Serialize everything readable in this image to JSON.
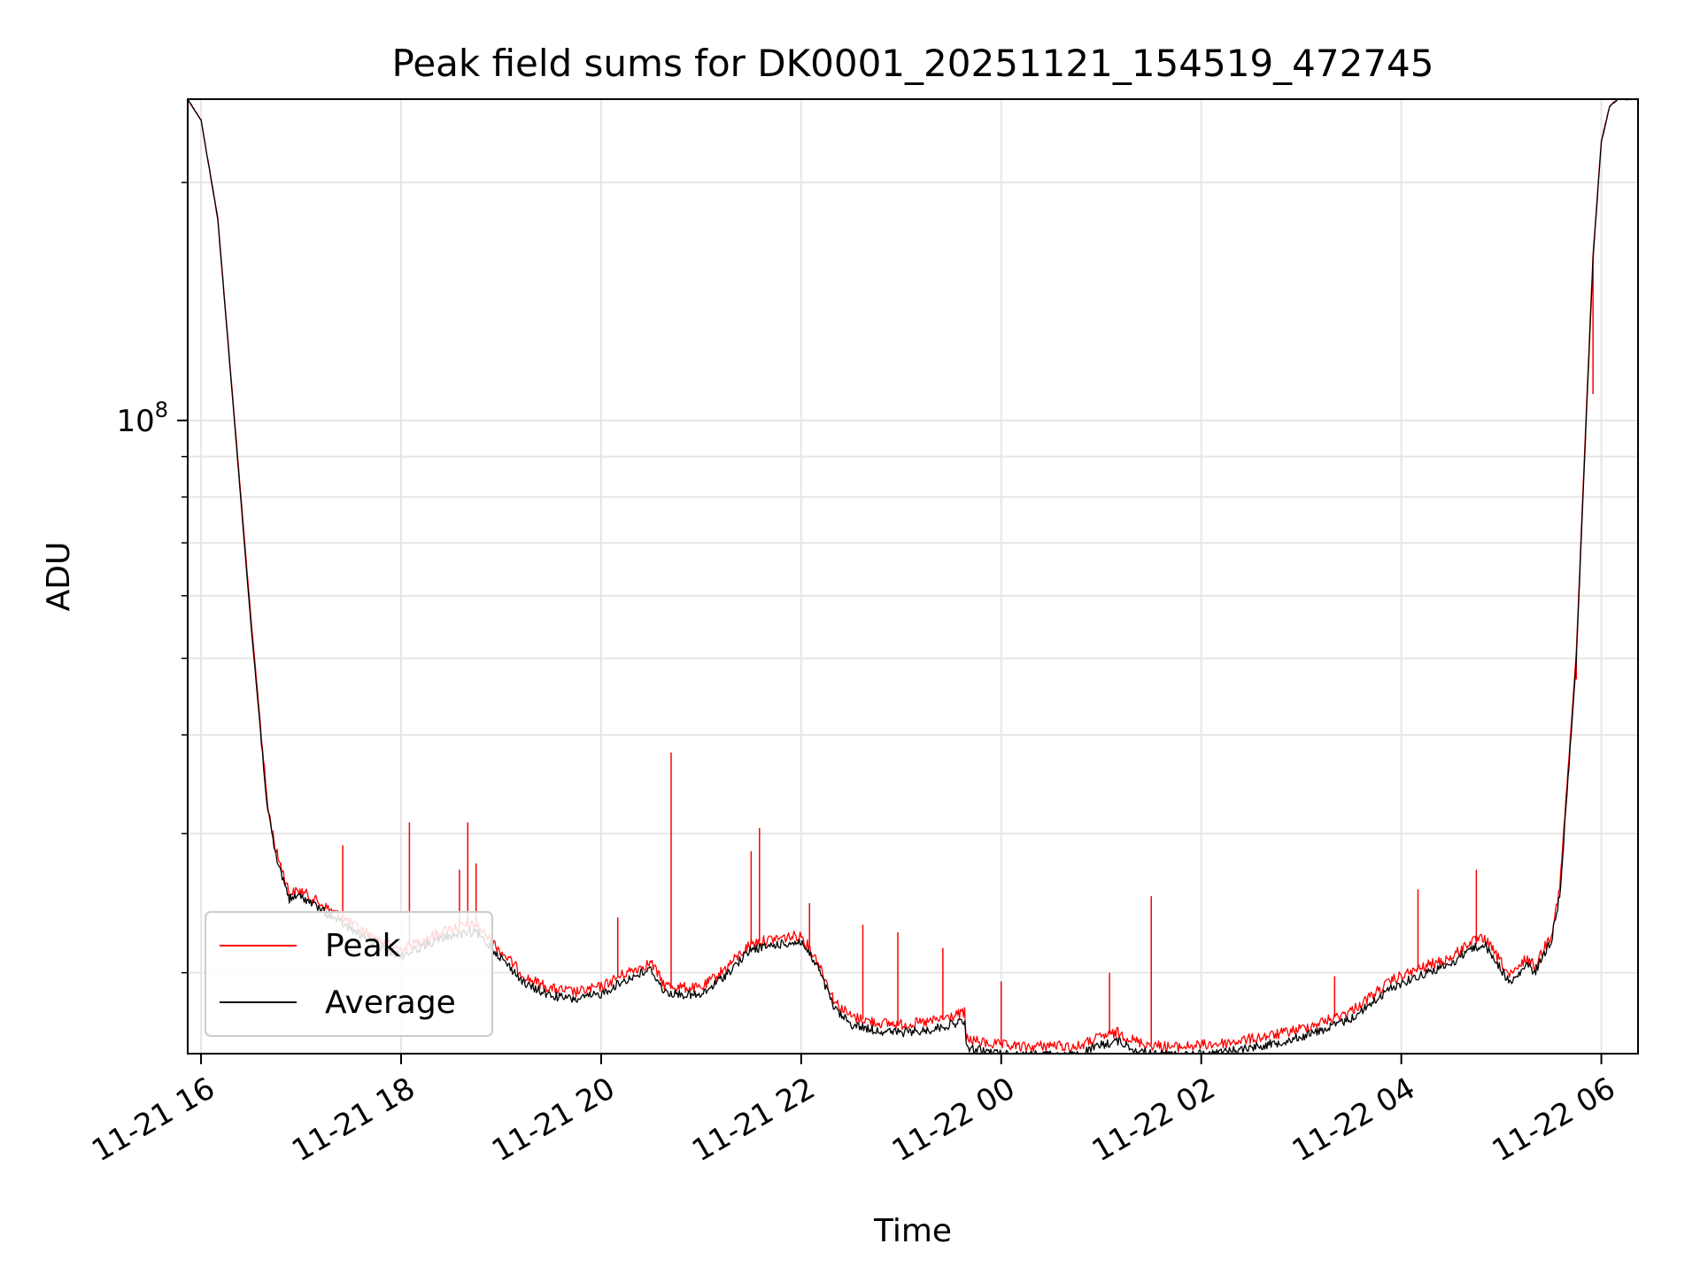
{
  "chart_data": {
    "type": "line",
    "title": "Peak field sums for DK0001_20251121_154519_472745",
    "xlabel": "Time",
    "ylabel": "ADU",
    "y_scale": "log",
    "xlim": [
      "2025-11-21 15:52",
      "2025-11-22 06:22"
    ],
    "ylim": [
      15800000,
      255000000
    ],
    "grid": true,
    "legend_position": "lower-left",
    "x_tick_labels": [
      "11-21 16",
      "11-21 18",
      "11-21 20",
      "11-21 22",
      "11-22 00",
      "11-22 02",
      "11-22 04",
      "11-22 06"
    ],
    "x_tick_values": [
      "2025-11-21 16:00",
      "2025-11-21 18:00",
      "2025-11-21 20:00",
      "2025-11-21 22:00",
      "2025-11-22 00:00",
      "2025-11-22 02:00",
      "2025-11-22 04:00",
      "2025-11-22 06:00"
    ],
    "y_tick_major": [
      {
        "value": 100000000,
        "label": "10",
        "exponent": "8"
      }
    ],
    "y_tick_minor": [
      20000000,
      30000000,
      40000000,
      50000000,
      60000000,
      70000000,
      80000000,
      90000000,
      200000000
    ],
    "series": [
      {
        "name": "Average",
        "color": "#000000",
        "x": [
          "2025-11-21 15:52",
          "2025-11-21 16:00",
          "2025-11-21 16:10",
          "2025-11-21 16:20",
          "2025-11-21 16:30",
          "2025-11-21 16:40",
          "2025-11-21 16:45",
          "2025-11-21 16:50",
          "2025-11-21 16:53",
          "2025-11-21 17:00",
          "2025-11-21 17:15",
          "2025-11-21 17:30",
          "2025-11-21 17:45",
          "2025-11-21 18:00",
          "2025-11-21 18:15",
          "2025-11-21 18:30",
          "2025-11-21 18:45",
          "2025-11-21 19:00",
          "2025-11-21 19:15",
          "2025-11-21 19:30",
          "2025-11-21 19:45",
          "2025-11-21 20:00",
          "2025-11-21 20:15",
          "2025-11-21 20:30",
          "2025-11-21 20:38",
          "2025-11-21 20:45",
          "2025-11-21 21:00",
          "2025-11-21 21:15",
          "2025-11-21 21:30",
          "2025-11-21 21:45",
          "2025-11-21 22:00",
          "2025-11-21 22:10",
          "2025-11-21 22:20",
          "2025-11-21 22:30",
          "2025-11-21 22:45",
          "2025-11-21 23:00",
          "2025-11-21 23:15",
          "2025-11-21 23:30",
          "2025-11-21 23:38",
          "2025-11-21 23:39",
          "2025-11-21 23:50",
          "2025-11-22 00:00",
          "2025-11-22 00:15",
          "2025-11-22 00:30",
          "2025-11-22 00:45",
          "2025-11-22 01:00",
          "2025-11-22 01:10",
          "2025-11-22 01:20",
          "2025-11-22 01:30",
          "2025-11-22 01:45",
          "2025-11-22 02:00",
          "2025-11-22 02:15",
          "2025-11-22 02:30",
          "2025-11-22 02:45",
          "2025-11-22 03:00",
          "2025-11-22 03:15",
          "2025-11-22 03:30",
          "2025-11-22 03:45",
          "2025-11-22 03:55",
          "2025-11-22 04:05",
          "2025-11-22 04:15",
          "2025-11-22 04:30",
          "2025-11-22 04:40",
          "2025-11-22 04:50",
          "2025-11-22 05:00",
          "2025-11-22 05:05",
          "2025-11-22 05:10",
          "2025-11-22 05:15",
          "2025-11-22 05:20",
          "2025-11-22 05:30",
          "2025-11-22 05:35",
          "2025-11-22 05:40",
          "2025-11-22 05:45",
          "2025-11-22 05:50",
          "2025-11-22 05:55",
          "2025-11-22 06:00",
          "2025-11-22 06:05",
          "2025-11-22 06:10",
          "2025-11-22 06:22"
        ],
        "y": [
          255000000,
          240000000,
          180000000,
          100000000,
          55000000,
          32000000,
          28000000,
          26000000,
          24800000,
          25000000,
          23800000,
          22700000,
          21700000,
          21000000,
          21700000,
          22300000,
          22500000,
          20900000,
          19300000,
          18700000,
          18500000,
          18800000,
          19600000,
          20200000,
          18900000,
          18800000,
          18700000,
          19900000,
          21400000,
          21700000,
          21900000,
          20300000,
          18000000,
          17200000,
          16900000,
          16800000,
          16900000,
          17200000,
          17400000,
          16100000,
          15900000,
          15800000,
          15700000,
          15800000,
          15700000,
          16200000,
          16400000,
          16000000,
          15800000,
          15700000,
          15800000,
          15900000,
          16100000,
          16300000,
          16600000,
          17000000,
          17500000,
          18500000,
          19200000,
          19600000,
          20000000,
          20500000,
          21400000,
          21700000,
          20200000,
          19400000,
          19800000,
          20500000,
          20000000,
          22000000,
          25000000,
          35000000,
          50000000,
          90000000,
          160000000,
          225000000,
          250000000,
          255000000,
          255000000
        ]
      },
      {
        "name": "Peak",
        "color": "#ff0000",
        "x": [
          "2025-11-21 15:52",
          "2025-11-21 16:00",
          "2025-11-21 16:10",
          "2025-11-21 16:20",
          "2025-11-21 16:30",
          "2025-11-21 16:40",
          "2025-11-21 16:45",
          "2025-11-21 16:50",
          "2025-11-21 16:53",
          "2025-11-21 17:00",
          "2025-11-21 17:15",
          "2025-11-21 17:30",
          "2025-11-21 17:45",
          "2025-11-21 18:00",
          "2025-11-21 18:15",
          "2025-11-21 18:30",
          "2025-11-21 18:45",
          "2025-11-21 19:00",
          "2025-11-21 19:15",
          "2025-11-21 19:30",
          "2025-11-21 19:45",
          "2025-11-21 20:00",
          "2025-11-21 20:15",
          "2025-11-21 20:30",
          "2025-11-21 20:38",
          "2025-11-21 20:45",
          "2025-11-21 21:00",
          "2025-11-21 21:15",
          "2025-11-21 21:30",
          "2025-11-21 21:45",
          "2025-11-21 22:00",
          "2025-11-21 22:10",
          "2025-11-21 22:20",
          "2025-11-21 22:30",
          "2025-11-21 22:45",
          "2025-11-21 23:00",
          "2025-11-21 23:15",
          "2025-11-21 23:30",
          "2025-11-21 23:38",
          "2025-11-21 23:39",
          "2025-11-21 23:50",
          "2025-11-22 00:00",
          "2025-11-22 00:15",
          "2025-11-22 00:30",
          "2025-11-22 00:45",
          "2025-11-22 01:00",
          "2025-11-22 01:10",
          "2025-11-22 01:20",
          "2025-11-22 01:30",
          "2025-11-22 01:45",
          "2025-11-22 02:00",
          "2025-11-22 02:15",
          "2025-11-22 02:30",
          "2025-11-22 02:45",
          "2025-11-22 03:00",
          "2025-11-22 03:15",
          "2025-11-22 03:30",
          "2025-11-22 03:45",
          "2025-11-22 03:55",
          "2025-11-22 04:05",
          "2025-11-22 04:15",
          "2025-11-22 04:30",
          "2025-11-22 04:40",
          "2025-11-22 04:50",
          "2025-11-22 05:00",
          "2025-11-22 05:05",
          "2025-11-22 05:10",
          "2025-11-22 05:15",
          "2025-11-22 05:20",
          "2025-11-22 05:30",
          "2025-11-22 05:35",
          "2025-11-22 05:40",
          "2025-11-22 05:45",
          "2025-11-22 05:50",
          "2025-11-22 05:55",
          "2025-11-22 06:00",
          "2025-11-22 06:05",
          "2025-11-22 06:10",
          "2025-11-22 06:22"
        ],
        "y": [
          255000000,
          240000000,
          181000000,
          101000000,
          56000000,
          32500000,
          28500000,
          26500000,
          25200000,
          25400000,
          24200000,
          23100000,
          22100000,
          21400000,
          22100000,
          22800000,
          23000000,
          21300000,
          19700000,
          19100000,
          18900000,
          19200000,
          20000000,
          20600000,
          19300000,
          19200000,
          19100000,
          20300000,
          21800000,
          22100000,
          22300000,
          20700000,
          18400000,
          17600000,
          17300000,
          17200000,
          17300000,
          17600000,
          17800000,
          16500000,
          16300000,
          16200000,
          16100000,
          16200000,
          16100000,
          16600000,
          16800000,
          16400000,
          16200000,
          16100000,
          16200000,
          16300000,
          16500000,
          16700000,
          17000000,
          17400000,
          17900000,
          18900000,
          19600000,
          20000000,
          20400000,
          20900000,
          21800000,
          22100000,
          20600000,
          19800000,
          20200000,
          20900000,
          20400000,
          22400000,
          25500000,
          36000000,
          51000000,
          92000000,
          162000000,
          226000000,
          250000000,
          255000000,
          255000000
        ],
        "spikes": [
          {
            "x": "2025-11-21 16:48",
            "y": 27500000
          },
          {
            "x": "2025-11-21 17:25",
            "y": 29000000
          },
          {
            "x": "2025-11-21 18:05",
            "y": 31000000
          },
          {
            "x": "2025-11-21 18:35",
            "y": 27000000
          },
          {
            "x": "2025-11-21 18:40",
            "y": 31000000
          },
          {
            "x": "2025-11-21 18:45",
            "y": 27500000
          },
          {
            "x": "2025-11-21 20:10",
            "y": 23500000
          },
          {
            "x": "2025-11-21 20:42",
            "y": 38000000
          },
          {
            "x": "2025-11-21 21:30",
            "y": 28500000
          },
          {
            "x": "2025-11-21 21:35",
            "y": 30500000
          },
          {
            "x": "2025-11-21 22:05",
            "y": 24500000
          },
          {
            "x": "2025-11-21 22:37",
            "y": 23000000
          },
          {
            "x": "2025-11-21 22:58",
            "y": 22500000
          },
          {
            "x": "2025-11-21 23:25",
            "y": 21500000
          },
          {
            "x": "2025-11-22 00:00",
            "y": 19500000
          },
          {
            "x": "2025-11-22 01:05",
            "y": 20000000
          },
          {
            "x": "2025-11-22 01:30",
            "y": 25000000
          },
          {
            "x": "2025-11-22 03:20",
            "y": 19800000
          },
          {
            "x": "2025-11-22 04:10",
            "y": 25500000
          },
          {
            "x": "2025-11-22 04:45",
            "y": 27000000
          },
          {
            "x": "2025-11-22 05:45",
            "y": 47000000
          },
          {
            "x": "2025-11-22 05:55",
            "y": 108000000
          }
        ]
      }
    ]
  }
}
